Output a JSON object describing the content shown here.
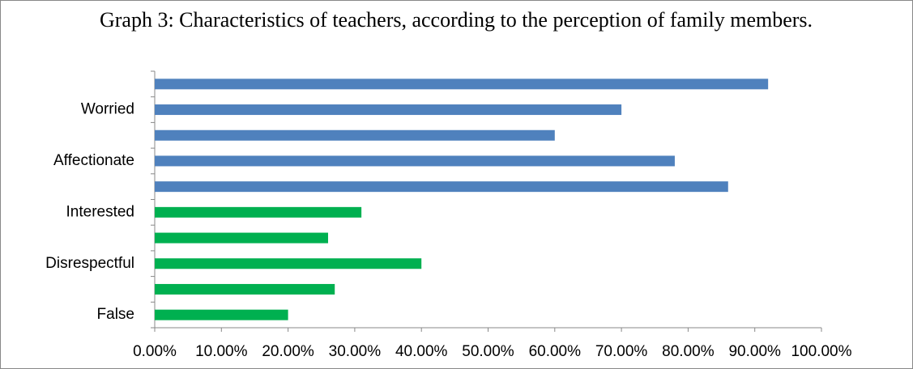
{
  "chart_data": {
    "type": "bar",
    "orientation": "horizontal",
    "title": "Graph 3: Characteristics of teachers, according to the perception of family members.",
    "categories": [
      null,
      "Worried",
      null,
      "Affectionate",
      null,
      "Interested",
      null,
      "Disrespectful",
      null,
      "False"
    ],
    "values": [
      92,
      70,
      60,
      78,
      86,
      31,
      26,
      40,
      27,
      20
    ],
    "colors": [
      "#4f81bd",
      "#4f81bd",
      "#4f81bd",
      "#4f81bd",
      "#4f81bd",
      "#00b050",
      "#00b050",
      "#00b050",
      "#00b050",
      "#00b050"
    ],
    "xlim": [
      0,
      100
    ],
    "xticks": [
      {
        "value": 0,
        "label": "0.00%"
      },
      {
        "value": 10,
        "label": "10.00%"
      },
      {
        "value": 20,
        "label": "20.00%"
      },
      {
        "value": 30,
        "label": "30.00%"
      },
      {
        "value": 40,
        "label": "40.00%"
      },
      {
        "value": 50,
        "label": "50.00%"
      },
      {
        "value": 60,
        "label": "60.00%"
      },
      {
        "value": 70,
        "label": "70.00%"
      },
      {
        "value": 80,
        "label": "80.00%"
      },
      {
        "value": 90,
        "label": "90.00%"
      },
      {
        "value": 100,
        "label": "100.00%"
      }
    ],
    "grid": false
  }
}
